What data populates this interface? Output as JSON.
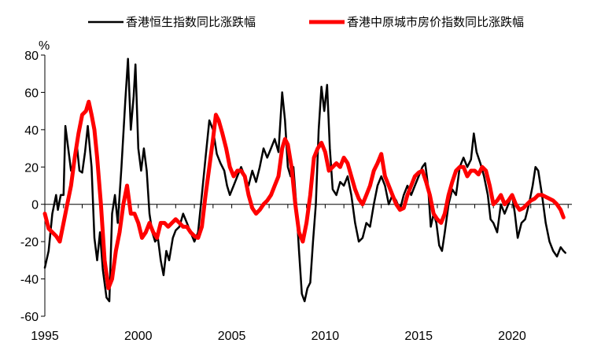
{
  "chart_data": {
    "type": "line",
    "title": "",
    "xlabel": "",
    "ylabel": "%",
    "xlim": [
      1995,
      2023.2
    ],
    "ylim": [
      -60,
      80
    ],
    "x_ticks": [
      1995,
      2000,
      2005,
      2010,
      2015,
      2020
    ],
    "y_ticks": [
      80,
      60,
      40,
      20,
      0,
      -20,
      -40,
      -60
    ],
    "grid": false,
    "legend_position": "top",
    "series": [
      {
        "name": "香港恒生指数同比涨跌幅",
        "color": "#000000",
        "points": [
          [
            1995.0,
            -34
          ],
          [
            1995.2,
            -25
          ],
          [
            1995.4,
            -5
          ],
          [
            1995.6,
            5
          ],
          [
            1995.7,
            -3
          ],
          [
            1995.85,
            5
          ],
          [
            1996.0,
            5
          ],
          [
            1996.1,
            42
          ],
          [
            1996.25,
            30
          ],
          [
            1996.4,
            18
          ],
          [
            1996.55,
            22
          ],
          [
            1996.7,
            33
          ],
          [
            1996.85,
            18
          ],
          [
            1997.0,
            17
          ],
          [
            1997.15,
            28
          ],
          [
            1997.3,
            42
          ],
          [
            1997.5,
            20
          ],
          [
            1997.65,
            -18
          ],
          [
            1997.8,
            -30
          ],
          [
            1997.95,
            -15
          ],
          [
            1998.1,
            -35
          ],
          [
            1998.3,
            -50
          ],
          [
            1998.45,
            -52
          ],
          [
            1998.6,
            -5
          ],
          [
            1998.75,
            5
          ],
          [
            1998.9,
            -10
          ],
          [
            1999.1,
            20
          ],
          [
            1999.3,
            55
          ],
          [
            1999.45,
            78
          ],
          [
            1999.6,
            40
          ],
          [
            1999.75,
            58
          ],
          [
            1999.85,
            75
          ],
          [
            2000.0,
            30
          ],
          [
            2000.15,
            18
          ],
          [
            2000.3,
            30
          ],
          [
            2000.45,
            18
          ],
          [
            2000.6,
            -5
          ],
          [
            2000.75,
            -15
          ],
          [
            2000.9,
            -20
          ],
          [
            2001.05,
            -18
          ],
          [
            2001.2,
            -30
          ],
          [
            2001.35,
            -38
          ],
          [
            2001.5,
            -25
          ],
          [
            2001.65,
            -30
          ],
          [
            2001.85,
            -18
          ],
          [
            2002.0,
            -14
          ],
          [
            2002.2,
            -12
          ],
          [
            2002.4,
            -5
          ],
          [
            2002.6,
            -10
          ],
          [
            2002.8,
            -15
          ],
          [
            2003.0,
            -20
          ],
          [
            2003.2,
            -15
          ],
          [
            2003.4,
            5
          ],
          [
            2003.6,
            25
          ],
          [
            2003.8,
            45
          ],
          [
            2004.0,
            40
          ],
          [
            2004.2,
            27
          ],
          [
            2004.4,
            22
          ],
          [
            2004.6,
            18
          ],
          [
            2004.75,
            10
          ],
          [
            2004.9,
            5
          ],
          [
            2005.1,
            10
          ],
          [
            2005.3,
            15
          ],
          [
            2005.5,
            20
          ],
          [
            2005.7,
            15
          ],
          [
            2005.9,
            10
          ],
          [
            2006.1,
            18
          ],
          [
            2006.3,
            12
          ],
          [
            2006.5,
            20
          ],
          [
            2006.7,
            30
          ],
          [
            2006.9,
            25
          ],
          [
            2007.1,
            30
          ],
          [
            2007.3,
            35
          ],
          [
            2007.5,
            28
          ],
          [
            2007.7,
            60
          ],
          [
            2007.85,
            45
          ],
          [
            2008.0,
            20
          ],
          [
            2008.15,
            15
          ],
          [
            2008.3,
            20
          ],
          [
            2008.45,
            0
          ],
          [
            2008.6,
            -25
          ],
          [
            2008.75,
            -48
          ],
          [
            2008.9,
            -52
          ],
          [
            2009.05,
            -45
          ],
          [
            2009.2,
            -42
          ],
          [
            2009.35,
            -20
          ],
          [
            2009.5,
            0
          ],
          [
            2009.65,
            40
          ],
          [
            2009.8,
            63
          ],
          [
            2009.95,
            50
          ],
          [
            2010.1,
            64
          ],
          [
            2010.25,
            30
          ],
          [
            2010.4,
            8
          ],
          [
            2010.6,
            5
          ],
          [
            2010.8,
            12
          ],
          [
            2011.0,
            10
          ],
          [
            2011.2,
            15
          ],
          [
            2011.4,
            5
          ],
          [
            2011.6,
            -10
          ],
          [
            2011.8,
            -20
          ],
          [
            2012.0,
            -18
          ],
          [
            2012.2,
            -10
          ],
          [
            2012.4,
            -12
          ],
          [
            2012.6,
            0
          ],
          [
            2012.8,
            10
          ],
          [
            2013.0,
            15
          ],
          [
            2013.2,
            10
          ],
          [
            2013.4,
            0
          ],
          [
            2013.6,
            5
          ],
          [
            2013.8,
            2
          ],
          [
            2014.0,
            -3
          ],
          [
            2014.2,
            5
          ],
          [
            2014.4,
            10
          ],
          [
            2014.6,
            5
          ],
          [
            2014.8,
            10
          ],
          [
            2015.0,
            15
          ],
          [
            2015.2,
            20
          ],
          [
            2015.35,
            22
          ],
          [
            2015.5,
            10
          ],
          [
            2015.65,
            -12
          ],
          [
            2015.8,
            -5
          ],
          [
            2015.95,
            -10
          ],
          [
            2016.1,
            -22
          ],
          [
            2016.25,
            -25
          ],
          [
            2016.4,
            -15
          ],
          [
            2016.6,
            0
          ],
          [
            2016.8,
            8
          ],
          [
            2017.0,
            5
          ],
          [
            2017.2,
            20
          ],
          [
            2017.4,
            25
          ],
          [
            2017.6,
            20
          ],
          [
            2017.8,
            24
          ],
          [
            2017.95,
            38
          ],
          [
            2018.1,
            28
          ],
          [
            2018.3,
            22
          ],
          [
            2018.5,
            15
          ],
          [
            2018.7,
            5
          ],
          [
            2018.85,
            -8
          ],
          [
            2019.0,
            -10
          ],
          [
            2019.2,
            -15
          ],
          [
            2019.4,
            0
          ],
          [
            2019.6,
            -5
          ],
          [
            2019.8,
            0
          ],
          [
            2020.0,
            5
          ],
          [
            2020.15,
            -5
          ],
          [
            2020.3,
            -18
          ],
          [
            2020.5,
            -10
          ],
          [
            2020.7,
            -8
          ],
          [
            2020.9,
            0
          ],
          [
            2021.1,
            10
          ],
          [
            2021.25,
            20
          ],
          [
            2021.4,
            18
          ],
          [
            2021.6,
            5
          ],
          [
            2021.8,
            -10
          ],
          [
            2022.0,
            -20
          ],
          [
            2022.2,
            -25
          ],
          [
            2022.4,
            -28
          ],
          [
            2022.6,
            -23
          ],
          [
            2022.75,
            -25
          ],
          [
            2022.85,
            -26
          ]
        ]
      },
      {
        "name": "香港中原城市房价指数同比涨跌幅",
        "color": "#ff0000",
        "points": [
          [
            1995.0,
            -5
          ],
          [
            1995.2,
            -13
          ],
          [
            1995.4,
            -15
          ],
          [
            1995.6,
            -17
          ],
          [
            1995.8,
            -20
          ],
          [
            1996.0,
            -10
          ],
          [
            1996.2,
            0
          ],
          [
            1996.4,
            10
          ],
          [
            1996.6,
            25
          ],
          [
            1996.8,
            38
          ],
          [
            1997.0,
            48
          ],
          [
            1997.2,
            50
          ],
          [
            1997.35,
            55
          ],
          [
            1997.5,
            48
          ],
          [
            1997.65,
            40
          ],
          [
            1997.8,
            25
          ],
          [
            1998.0,
            0
          ],
          [
            1998.2,
            -30
          ],
          [
            1998.4,
            -45
          ],
          [
            1998.6,
            -40
          ],
          [
            1998.8,
            -25
          ],
          [
            1999.0,
            -15
          ],
          [
            1999.2,
            0
          ],
          [
            1999.4,
            10
          ],
          [
            1999.6,
            -5
          ],
          [
            1999.8,
            -5
          ],
          [
            2000.0,
            -10
          ],
          [
            2000.2,
            -18
          ],
          [
            2000.4,
            -15
          ],
          [
            2000.6,
            -10
          ],
          [
            2000.8,
            -15
          ],
          [
            2001.0,
            -18
          ],
          [
            2001.2,
            -10
          ],
          [
            2001.4,
            -10
          ],
          [
            2001.6,
            -12
          ],
          [
            2001.8,
            -10
          ],
          [
            2002.0,
            -8
          ],
          [
            2002.2,
            -10
          ],
          [
            2002.4,
            -12
          ],
          [
            2002.6,
            -12
          ],
          [
            2002.8,
            -15
          ],
          [
            2003.0,
            -17
          ],
          [
            2003.2,
            -18
          ],
          [
            2003.4,
            -12
          ],
          [
            2003.6,
            5
          ],
          [
            2003.8,
            20
          ],
          [
            2004.0,
            35
          ],
          [
            2004.15,
            48
          ],
          [
            2004.3,
            45
          ],
          [
            2004.5,
            38
          ],
          [
            2004.7,
            30
          ],
          [
            2004.9,
            20
          ],
          [
            2005.1,
            15
          ],
          [
            2005.3,
            18
          ],
          [
            2005.5,
            18
          ],
          [
            2005.7,
            15
          ],
          [
            2005.9,
            5
          ],
          [
            2006.1,
            -2
          ],
          [
            2006.3,
            -5
          ],
          [
            2006.5,
            -3
          ],
          [
            2006.7,
            0
          ],
          [
            2006.9,
            2
          ],
          [
            2007.1,
            5
          ],
          [
            2007.3,
            10
          ],
          [
            2007.5,
            15
          ],
          [
            2007.7,
            30
          ],
          [
            2007.85,
            35
          ],
          [
            2008.0,
            32
          ],
          [
            2008.2,
            20
          ],
          [
            2008.4,
            0
          ],
          [
            2008.6,
            -15
          ],
          [
            2008.8,
            -20
          ],
          [
            2009.0,
            -10
          ],
          [
            2009.2,
            5
          ],
          [
            2009.4,
            25
          ],
          [
            2009.6,
            30
          ],
          [
            2009.8,
            33
          ],
          [
            2010.0,
            28
          ],
          [
            2010.2,
            18
          ],
          [
            2010.4,
            20
          ],
          [
            2010.6,
            22
          ],
          [
            2010.8,
            20
          ],
          [
            2011.0,
            25
          ],
          [
            2011.2,
            22
          ],
          [
            2011.4,
            15
          ],
          [
            2011.6,
            8
          ],
          [
            2011.8,
            3
          ],
          [
            2012.0,
            0
          ],
          [
            2012.2,
            5
          ],
          [
            2012.4,
            10
          ],
          [
            2012.6,
            18
          ],
          [
            2012.8,
            22
          ],
          [
            2013.0,
            27
          ],
          [
            2013.2,
            15
          ],
          [
            2013.4,
            10
          ],
          [
            2013.6,
            5
          ],
          [
            2013.8,
            0
          ],
          [
            2014.0,
            -3
          ],
          [
            2014.2,
            -2
          ],
          [
            2014.4,
            5
          ],
          [
            2014.6,
            10
          ],
          [
            2014.8,
            15
          ],
          [
            2015.0,
            17
          ],
          [
            2015.2,
            18
          ],
          [
            2015.4,
            12
          ],
          [
            2015.6,
            5
          ],
          [
            2015.8,
            -5
          ],
          [
            2016.0,
            -8
          ],
          [
            2016.2,
            -10
          ],
          [
            2016.4,
            -5
          ],
          [
            2016.6,
            5
          ],
          [
            2016.8,
            12
          ],
          [
            2017.0,
            18
          ],
          [
            2017.2,
            20
          ],
          [
            2017.4,
            20
          ],
          [
            2017.6,
            15
          ],
          [
            2017.8,
            18
          ],
          [
            2018.0,
            18
          ],
          [
            2018.2,
            16
          ],
          [
            2018.4,
            20
          ],
          [
            2018.6,
            18
          ],
          [
            2018.8,
            10
          ],
          [
            2019.0,
            0
          ],
          [
            2019.2,
            2
          ],
          [
            2019.4,
            5
          ],
          [
            2019.6,
            0
          ],
          [
            2019.8,
            2
          ],
          [
            2020.0,
            5
          ],
          [
            2020.2,
            0
          ],
          [
            2020.4,
            -3
          ],
          [
            2020.6,
            -2
          ],
          [
            2020.8,
            0
          ],
          [
            2021.0,
            2
          ],
          [
            2021.2,
            3
          ],
          [
            2021.4,
            5
          ],
          [
            2021.6,
            5
          ],
          [
            2021.8,
            4
          ],
          [
            2022.0,
            3
          ],
          [
            2022.2,
            2
          ],
          [
            2022.4,
            0
          ],
          [
            2022.6,
            -3
          ],
          [
            2022.75,
            -7
          ]
        ]
      }
    ]
  }
}
